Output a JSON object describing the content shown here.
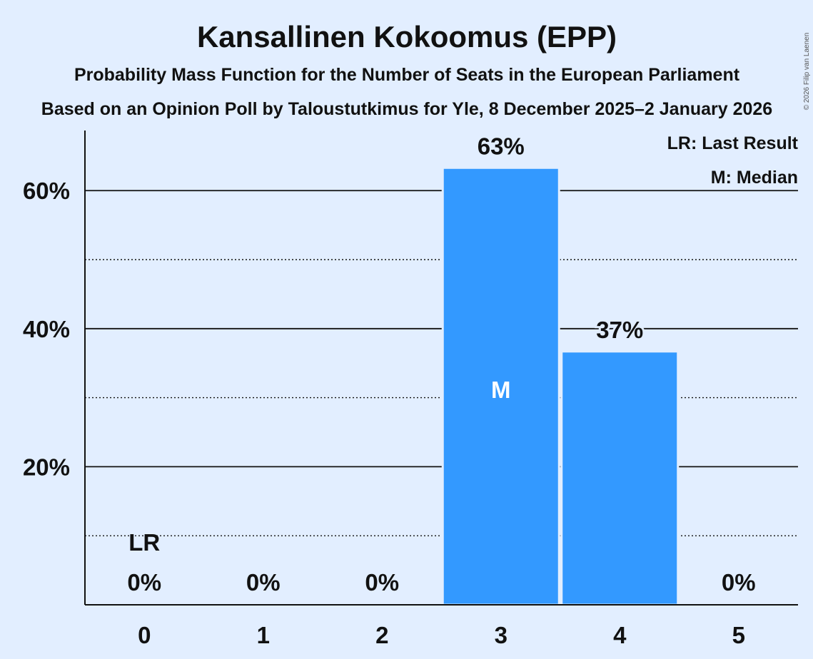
{
  "chart_data": {
    "type": "bar",
    "title": "Kansallinen Kokoomus (EPP)",
    "subtitle": "Probability Mass Function for the Number of Seats in the European Parliament",
    "subtitle2": "Based on an Opinion Poll by Taloustutkimus for Yle, 8 December 2025–2 January 2026",
    "categories": [
      "0",
      "1",
      "2",
      "3",
      "4",
      "5"
    ],
    "values": [
      0,
      0,
      0,
      63.3,
      36.7,
      0
    ],
    "value_labels": [
      "0%",
      "0%",
      "0%",
      "63%",
      "37%",
      "0%"
    ],
    "ylim": [
      0,
      68.7
    ],
    "yticks": [
      20,
      40,
      60
    ],
    "ytick_labels": [
      "20%",
      "40%",
      "60%"
    ],
    "minor_gridlines": [
      10,
      30,
      50
    ],
    "bar_color": "#3399ff",
    "last_result_index": 0,
    "last_result_label": "LR",
    "median_index": 3,
    "median_label": "M",
    "legend": [
      "LR: Last Result",
      "M: Median"
    ],
    "legend_position": "top-right",
    "xlabel": "",
    "ylabel": ""
  },
  "copyright": "© 2026 Filip van Laenen"
}
